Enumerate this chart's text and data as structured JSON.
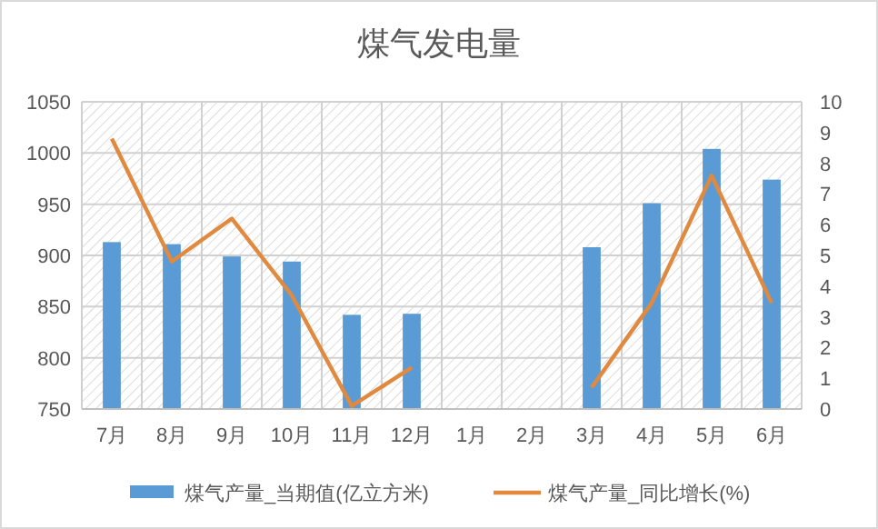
{
  "chart_data": {
    "type": "bar",
    "title": "煤气发电量",
    "categories": [
      "7月",
      "8月",
      "9月",
      "10月",
      "11月",
      "12月",
      "1月",
      "2月",
      "3月",
      "4月",
      "5月",
      "6月"
    ],
    "series": [
      {
        "name": "煤气产量_当期值(亿立方米)",
        "color": "#5b9bd5",
        "values": [
          913,
          911,
          899,
          894,
          842,
          843,
          null,
          null,
          908,
          951,
          1004,
          974
        ]
      },
      {
        "name": "煤气产量_同比增长(%)",
        "type": "line",
        "axis": "y2",
        "color": "#e0893f",
        "values": [
          8.8,
          4.8,
          6.2,
          3.7,
          0.1,
          1.35,
          null,
          null,
          0.7,
          3.45,
          7.6,
          3.45
        ]
      }
    ],
    "ylim": [
      750,
      1050
    ],
    "yticks": [
      750,
      800,
      850,
      900,
      950,
      1000,
      1050
    ],
    "y2lim": [
      0,
      10
    ],
    "y2ticks": [
      0,
      1,
      2,
      3,
      4,
      5,
      6,
      7,
      8,
      9,
      10
    ],
    "grid": true,
    "legend": "bottom",
    "marker": "none"
  }
}
